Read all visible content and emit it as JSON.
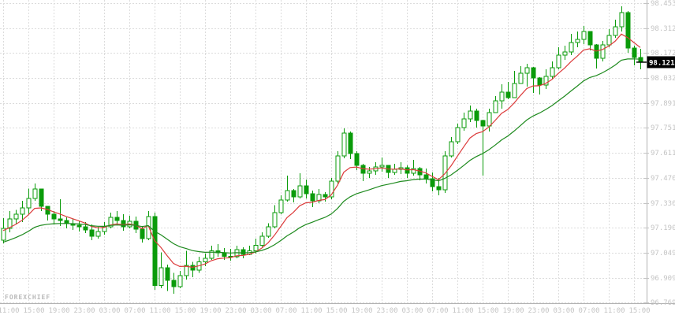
{
  "watermark": "FOREXCHIEF",
  "current_price": {
    "label": "98.121",
    "value": 98.121
  },
  "colors": {
    "background": "#ffffff",
    "grid": "#dcdcdc",
    "axis": "#b3b3b3",
    "candle": "#0a9b0a",
    "bull_body": "#ffffff",
    "ma_fast": "#dc3b3b",
    "ma_slow": "#1e8a1e",
    "scale_text": "#c4c4c4",
    "price_marker_bg": "#000000",
    "price_marker_text": "#ffffff",
    "watermark_text": "#b9b9b9"
  },
  "chart_data": {
    "type": "candlestick",
    "title": "",
    "xlabel": "",
    "ylabel": "",
    "grid": true,
    "ylim": [
      96.769,
      98.453
    ],
    "y_ticks": [
      "98.453",
      "98.312",
      "98.172",
      "98.032",
      "97.891",
      "97.751",
      "97.611",
      "97.470",
      "97.330",
      "97.190",
      "97.049",
      "96.909",
      "96.769"
    ],
    "x_labels": [
      "11:00",
      "15:00",
      "19:00",
      "23:00",
      "03:00",
      "07:00",
      "11:00",
      "15:00",
      "19:00",
      "23:00",
      "03:00",
      "07:00",
      "11:00",
      "15:00",
      "19:00",
      "23:00",
      "03:00",
      "07:00",
      "11:00",
      "15:00",
      "19:00",
      "23:00",
      "03:00",
      "07:00",
      "11:00",
      "15:00"
    ],
    "candles_per_x_label": 4,
    "open": [
      97.12,
      97.186,
      97.239,
      97.265,
      97.301,
      97.354,
      97.407,
      97.31,
      97.265,
      97.239,
      97.23,
      97.212,
      97.203,
      97.194,
      97.177,
      97.141,
      97.168,
      97.194,
      97.248,
      97.23,
      97.194,
      97.225,
      97.181,
      97.128,
      97.252,
      96.866,
      96.964,
      96.893,
      96.858,
      96.92,
      96.977,
      96.951,
      96.999,
      97.017,
      97.061,
      97.048,
      97.03,
      97.026,
      97.066,
      97.039,
      97.061,
      97.092,
      97.141,
      97.194,
      97.274,
      97.345,
      97.398,
      97.363,
      97.425,
      97.381,
      97.341,
      97.376,
      97.363,
      97.451,
      97.593,
      97.722,
      97.606,
      97.54,
      97.496,
      97.509,
      97.531,
      97.54,
      97.5,
      97.518,
      97.527,
      97.496,
      97.522,
      97.487,
      97.465,
      97.42,
      97.403,
      97.593,
      97.673,
      97.753,
      97.802,
      97.846,
      97.793,
      97.762,
      97.837,
      97.903,
      97.952,
      97.921,
      98.001,
      98.059,
      98.09,
      98.032,
      97.992,
      98.041,
      98.09,
      98.161,
      98.178,
      98.231,
      98.249,
      98.293,
      98.218,
      98.143,
      98.218,
      98.271,
      98.32,
      98.4,
      98.2,
      98.147
    ],
    "high": [
      97.244,
      97.283,
      97.291,
      97.341,
      97.41,
      97.438,
      97.41,
      97.31,
      97.283,
      97.35,
      97.248,
      97.239,
      97.23,
      97.221,
      97.208,
      97.194,
      97.221,
      97.274,
      97.283,
      97.265,
      97.256,
      97.252,
      97.199,
      97.283,
      97.274,
      97.052,
      96.982,
      96.937,
      96.946,
      97.061,
      96.999,
      97.026,
      97.044,
      97.088,
      97.097,
      97.075,
      97.07,
      97.088,
      97.079,
      97.088,
      97.128,
      97.163,
      97.216,
      97.318,
      97.372,
      97.482,
      97.407,
      97.496,
      97.46,
      97.398,
      97.407,
      97.389,
      97.469,
      97.62,
      97.748,
      97.73,
      97.62,
      97.549,
      97.531,
      97.558,
      97.584,
      97.54,
      97.549,
      97.558,
      97.54,
      97.571,
      97.531,
      97.522,
      97.5,
      97.469,
      97.62,
      97.7,
      97.775,
      97.837,
      97.877,
      97.859,
      97.797,
      97.859,
      97.93,
      97.997,
      98.01,
      98.072,
      98.098,
      98.112,
      98.094,
      98.036,
      98.081,
      98.125,
      98.205,
      98.214,
      98.28,
      98.293,
      98.324,
      98.293,
      98.223,
      98.24,
      98.307,
      98.36,
      98.435,
      98.409,
      98.214,
      98.196
    ],
    "low": [
      97.101,
      97.163,
      97.208,
      97.221,
      97.265,
      97.341,
      97.283,
      97.23,
      97.208,
      97.199,
      97.186,
      97.177,
      97.168,
      97.159,
      97.119,
      97.128,
      97.15,
      97.186,
      97.203,
      97.172,
      97.186,
      97.159,
      97.106,
      97.119,
      96.84,
      96.849,
      96.835,
      96.818,
      96.849,
      96.898,
      96.911,
      96.937,
      96.973,
      97.008,
      97.026,
      97.008,
      97.004,
      97.017,
      97.017,
      97.035,
      97.044,
      97.083,
      97.132,
      97.186,
      97.265,
      97.336,
      97.332,
      97.354,
      97.354,
      97.305,
      97.327,
      97.336,
      97.35,
      97.438,
      97.58,
      97.575,
      97.513,
      97.451,
      97.469,
      97.487,
      97.505,
      97.469,
      97.487,
      97.491,
      97.469,
      97.482,
      97.456,
      97.438,
      97.394,
      97.372,
      97.385,
      97.584,
      97.66,
      97.735,
      97.784,
      97.753,
      97.482,
      97.73,
      97.841,
      97.859,
      97.912,
      97.948,
      98.001,
      97.983,
      97.948,
      97.939,
      97.97,
      98.028,
      98.081,
      98.134,
      98.161,
      98.205,
      98.223,
      98.187,
      98.085,
      98.125,
      98.205,
      98.258,
      98.293,
      98.174,
      98.103,
      98.081
    ],
    "close": [
      97.186,
      97.239,
      97.265,
      97.301,
      97.354,
      97.407,
      97.31,
      97.265,
      97.239,
      97.23,
      97.212,
      97.203,
      97.194,
      97.177,
      97.141,
      97.168,
      97.194,
      97.248,
      97.23,
      97.194,
      97.225,
      97.181,
      97.128,
      97.252,
      96.866,
      96.964,
      96.893,
      96.858,
      96.92,
      96.977,
      96.951,
      96.999,
      97.017,
      97.061,
      97.048,
      97.03,
      97.026,
      97.066,
      97.039,
      97.061,
      97.092,
      97.141,
      97.194,
      97.274,
      97.345,
      97.398,
      97.363,
      97.425,
      97.381,
      97.341,
      97.376,
      97.363,
      97.451,
      97.593,
      97.722,
      97.606,
      97.54,
      97.496,
      97.509,
      97.531,
      97.54,
      97.5,
      97.518,
      97.527,
      97.496,
      97.522,
      97.487,
      97.465,
      97.42,
      97.403,
      97.593,
      97.673,
      97.753,
      97.802,
      97.846,
      97.793,
      97.762,
      97.837,
      97.903,
      97.952,
      97.921,
      98.001,
      98.059,
      98.09,
      98.032,
      97.992,
      98.041,
      98.09,
      98.161,
      98.178,
      98.231,
      98.249,
      98.293,
      98.218,
      98.143,
      98.218,
      98.271,
      98.32,
      98.4,
      98.2,
      98.147,
      98.121
    ],
    "overlays": [
      {
        "name": "ma-fast",
        "type": "ema",
        "period": 7,
        "seed": 97.17,
        "color": "#dc3b3b"
      },
      {
        "name": "ma-slow",
        "type": "ema",
        "period": 20,
        "seed": 97.1,
        "color": "#1e8a1e"
      }
    ],
    "legend": []
  }
}
